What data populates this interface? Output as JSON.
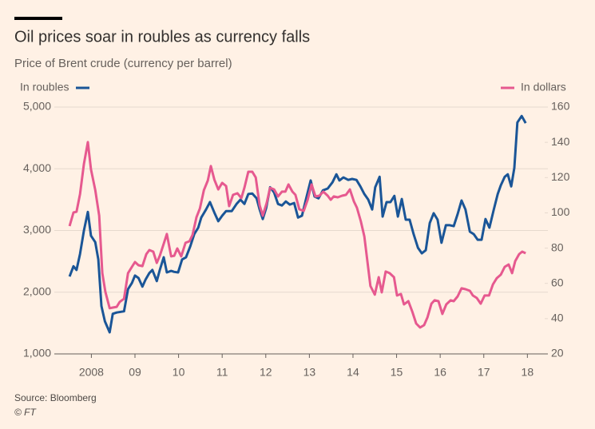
{
  "chart_data": {
    "type": "line",
    "title": "Oil prices soar in roubles as currency falls",
    "subtitle": "Price of Brent crude (currency per barrel)",
    "source": "Source: Bloomberg",
    "credit": "© FT",
    "xlim": [
      2007.65,
      2018.97
    ],
    "xticks": [
      {
        "value": 2008.5,
        "label": "2008"
      },
      {
        "value": 2009.5,
        "label": "09"
      },
      {
        "value": 2010.5,
        "label": "10"
      },
      {
        "value": 2011.5,
        "label": "11"
      },
      {
        "value": 2012.5,
        "label": "12"
      },
      {
        "value": 2013.5,
        "label": "13"
      },
      {
        "value": 2014.5,
        "label": "14"
      },
      {
        "value": 2015.5,
        "label": "15"
      },
      {
        "value": 2016.5,
        "label": "16"
      },
      {
        "value": 2017.5,
        "label": "17"
      },
      {
        "value": 2018.5,
        "label": "18"
      }
    ],
    "ylim": [
      1000,
      5000
    ],
    "yticks": [
      {
        "value": 1000,
        "label": "1,000"
      },
      {
        "value": 2000,
        "label": "2,000"
      },
      {
        "value": 3000,
        "label": "3,000"
      },
      {
        "value": 4000,
        "label": "4,000"
      },
      {
        "value": 5000,
        "label": "5,000"
      }
    ],
    "y2lim": [
      20,
      160
    ],
    "y2ticks": [
      20,
      40,
      60,
      80,
      100,
      120,
      140,
      160
    ],
    "grid": true,
    "series": [
      {
        "name": "In roubles",
        "color": "#1a5597",
        "axis": "y",
        "x": [
          2008.0,
          2008.09,
          2008.16,
          2008.24,
          2008.33,
          2008.42,
          2008.49,
          2008.59,
          2008.66,
          2008.73,
          2008.81,
          2008.92,
          2008.99,
          2009.08,
          2009.25,
          2009.34,
          2009.43,
          2009.5,
          2009.58,
          2009.67,
          2009.74,
          2009.83,
          2009.9,
          2010.0,
          2010.07,
          2010.16,
          2010.23,
          2010.33,
          2010.4,
          2010.49,
          2010.58,
          2010.67,
          2010.77,
          2010.86,
          2010.95,
          2011.02,
          2011.13,
          2011.22,
          2011.32,
          2011.41,
          2011.5,
          2011.59,
          2011.72,
          2011.83,
          2011.92,
          2012.01,
          2012.1,
          2012.19,
          2012.29,
          2012.36,
          2012.43,
          2012.51,
          2012.6,
          2012.69,
          2012.78,
          2012.87,
          2012.96,
          2013.05,
          2013.15,
          2013.24,
          2013.33,
          2013.42,
          2013.53,
          2013.62,
          2013.71,
          2013.81,
          2013.92,
          2014.03,
          2014.12,
          2014.19,
          2014.28,
          2014.39,
          2014.48,
          2014.58,
          2014.67,
          2014.76,
          2014.85,
          2014.94,
          2015.01,
          2015.11,
          2015.18,
          2015.27,
          2015.36,
          2015.45,
          2015.53,
          2015.62,
          2015.71,
          2015.8,
          2015.89,
          2015.99,
          2016.08,
          2016.17,
          2016.26,
          2016.35,
          2016.44,
          2016.53,
          2016.63,
          2016.72,
          2016.81,
          2016.9,
          2016.99,
          2017.08,
          2017.18,
          2017.27,
          2017.36,
          2017.45,
          2017.54,
          2017.63,
          2017.73,
          2017.82,
          2017.89,
          2017.98,
          2018.05,
          2018.13,
          2018.2,
          2018.27,
          2018.37,
          2018.46
        ],
        "values": [
          2255,
          2420,
          2360,
          2620,
          3000,
          3300,
          2915,
          2810,
          2530,
          1775,
          1530,
          1350,
          1650,
          1670,
          1690,
          2050,
          2150,
          2270,
          2230,
          2090,
          2200,
          2310,
          2360,
          2180,
          2360,
          2565,
          2320,
          2345,
          2330,
          2320,
          2530,
          2565,
          2745,
          2940,
          3045,
          3210,
          3340,
          3460,
          3290,
          3150,
          3240,
          3315,
          3315,
          3430,
          3500,
          3430,
          3590,
          3600,
          3520,
          3340,
          3185,
          3365,
          3700,
          3615,
          3430,
          3405,
          3470,
          3420,
          3445,
          3210,
          3240,
          3500,
          3810,
          3550,
          3520,
          3650,
          3680,
          3780,
          3910,
          3810,
          3860,
          3820,
          3835,
          3820,
          3715,
          3590,
          3500,
          3340,
          3700,
          3870,
          3225,
          3460,
          3460,
          3560,
          3225,
          3510,
          3175,
          3175,
          2940,
          2720,
          2630,
          2680,
          3120,
          3280,
          3175,
          2800,
          3085,
          3085,
          3070,
          3265,
          3485,
          3340,
          2980,
          2940,
          2850,
          2850,
          3185,
          3045,
          3340,
          3590,
          3730,
          3870,
          3910,
          3715,
          4015,
          4750,
          4855,
          4740
        ]
      },
      {
        "name": "In dollars",
        "color": "#e6598f",
        "axis": "y2",
        "x": [
          2008.0,
          2008.09,
          2008.16,
          2008.24,
          2008.33,
          2008.42,
          2008.49,
          2008.59,
          2008.68,
          2008.75,
          2008.82,
          2008.92,
          2008.99,
          2009.08,
          2009.15,
          2009.25,
          2009.34,
          2009.43,
          2009.5,
          2009.58,
          2009.67,
          2009.76,
          2009.83,
          2009.92,
          2010.0,
          2010.07,
          2010.16,
          2010.23,
          2010.33,
          2010.4,
          2010.47,
          2010.56,
          2010.66,
          2010.75,
          2010.82,
          2010.91,
          2010.99,
          2011.08,
          2011.17,
          2011.24,
          2011.32,
          2011.41,
          2011.5,
          2011.59,
          2011.66,
          2011.75,
          2011.85,
          2011.94,
          2012.01,
          2012.1,
          2012.19,
          2012.27,
          2012.36,
          2012.43,
          2012.52,
          2012.6,
          2012.69,
          2012.78,
          2012.87,
          2012.95,
          2013.02,
          2013.11,
          2013.18,
          2013.27,
          2013.37,
          2013.46,
          2013.55,
          2013.64,
          2013.73,
          2013.82,
          2013.92,
          2013.99,
          2014.06,
          2014.15,
          2014.25,
          2014.34,
          2014.43,
          2014.52,
          2014.59,
          2014.68,
          2014.76,
          2014.83,
          2014.9,
          2015.0,
          2015.09,
          2015.16,
          2015.25,
          2015.34,
          2015.44,
          2015.51,
          2015.6,
          2015.67,
          2015.77,
          2015.86,
          2015.95,
          2016.04,
          2016.13,
          2016.21,
          2016.3,
          2016.37,
          2016.46,
          2016.55,
          2016.64,
          2016.74,
          2016.81,
          2016.9,
          2016.99,
          2017.08,
          2017.18,
          2017.25,
          2017.34,
          2017.43,
          2017.52,
          2017.62,
          2017.71,
          2017.8,
          2017.89,
          2017.98,
          2018.07,
          2018.15,
          2018.22,
          2018.31,
          2018.38,
          2018.46
        ],
        "values": [
          92.5,
          100.2,
          100.6,
          110.6,
          127.8,
          140.1,
          124.7,
          112.9,
          98.4,
          65.8,
          55.3,
          45.9,
          46.3,
          46.7,
          49.5,
          51.3,
          65.8,
          69.4,
          72.1,
          70.3,
          69.8,
          76.6,
          78.9,
          78.0,
          71.6,
          75.7,
          82.5,
          88.0,
          75.3,
          75.7,
          79.8,
          75.3,
          83.0,
          83.9,
          87.5,
          97.5,
          102.5,
          112.9,
          118.3,
          126.5,
          118.8,
          113.3,
          117.0,
          115.2,
          103.8,
          110.2,
          111.1,
          108.4,
          114.2,
          123.3,
          123.3,
          120.1,
          104.3,
          98.4,
          105.6,
          114.2,
          113.3,
          109.3,
          112.0,
          112.0,
          116.1,
          112.0,
          110.2,
          102.0,
          101.1,
          107.4,
          116.1,
          109.3,
          109.7,
          112.0,
          109.7,
          107.4,
          109.3,
          108.8,
          109.7,
          110.2,
          113.3,
          106.5,
          102.9,
          95.2,
          86.6,
          72.6,
          58.5,
          53.6,
          63.5,
          54.9,
          66.7,
          65.8,
          63.5,
          53.1,
          54.0,
          48.1,
          49.9,
          44.0,
          37.2,
          35.0,
          36.3,
          40.8,
          48.5,
          50.4,
          49.9,
          42.7,
          48.1,
          50.4,
          49.9,
          52.6,
          57.2,
          56.7,
          55.8,
          53.1,
          51.7,
          48.5,
          53.1,
          53.1,
          59.4,
          63.0,
          64.9,
          69.4,
          70.7,
          65.8,
          72.6,
          76.6,
          78.0,
          77.1
        ]
      }
    ]
  }
}
